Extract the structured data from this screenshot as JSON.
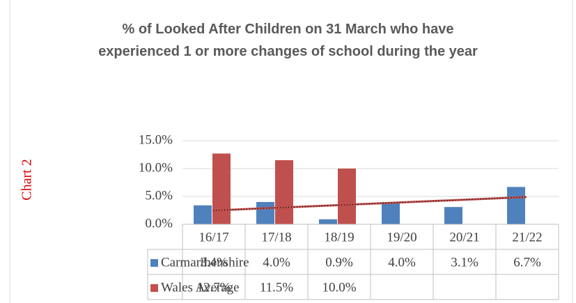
{
  "chart_data": {
    "type": "bar",
    "title": "% of Looked After Children on 31 March who have experienced 1 or more changes of school during the year",
    "annotation": "Chart 2",
    "categories": [
      "16/17",
      "17/18",
      "18/19",
      "19/20",
      "20/21",
      "21/22"
    ],
    "series": [
      {
        "name": "Carmarthenshire",
        "color": "#4f81bd",
        "values": [
          3.4,
          4.0,
          0.9,
          4.0,
          3.1,
          6.7
        ],
        "value_labels": [
          "3.4%",
          "4.0%",
          "0.9%",
          "4.0%",
          "3.1%",
          "6.7%"
        ],
        "trendline": true,
        "trendline_color": "#c0504d"
      },
      {
        "name": "Wales Average",
        "color": "#c0504d",
        "values": [
          12.7,
          11.5,
          10.0,
          null,
          null,
          null
        ],
        "value_labels": [
          "12.7%",
          "11.5%",
          "10.0%",
          null,
          null,
          null
        ]
      }
    ],
    "ylim": [
      0,
      15
    ],
    "yticks": [
      {
        "value": 0,
        "label": "0.0%"
      },
      {
        "value": 5,
        "label": "5.0%"
      },
      {
        "value": 10,
        "label": "10.0%"
      },
      {
        "value": 15,
        "label": "15.0%"
      }
    ],
    "grid": true,
    "data_table": true
  }
}
